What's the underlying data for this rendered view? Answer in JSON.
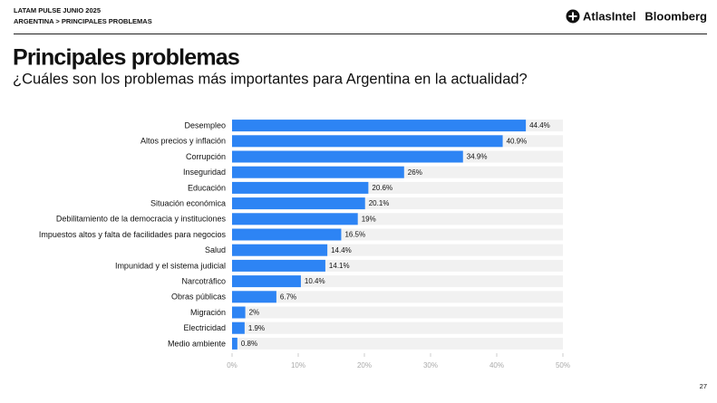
{
  "header": {
    "kicker": "LATAM PULSE JUNIO 2025",
    "breadcrumb": "ARGENTINA > PRINCIPALES PROBLEMAS",
    "brand": "AtlasIntel",
    "partner": "Bloomberg",
    "page_number": "27"
  },
  "chart_data": {
    "type": "hbar",
    "title": "Principales problemas",
    "subtitle": "¿Cuáles son los problemas más importantes para Argentina en la actualidad?",
    "categories": [
      "Desempleo",
      "Altos precios y inflación",
      "Corrupción",
      "Inseguridad",
      "Educación",
      "Situación económica",
      "Debilitamiento de la democracia y instituciones",
      "Impuestos altos y falta de facilidades para negocios",
      "Salud",
      "Impunidad y el sistema judicial",
      "Narcotráfico",
      "Obras públicas",
      "Migración",
      "Electricidad",
      "Medio ambiente"
    ],
    "values": [
      44.4,
      40.9,
      34.9,
      26,
      20.6,
      20.1,
      19,
      16.5,
      14.4,
      14.1,
      10.4,
      6.7,
      2,
      1.9,
      0.8
    ],
    "value_labels": [
      "44.4%",
      "40.9%",
      "34.9%",
      "26%",
      "20.6%",
      "20.1%",
      "19%",
      "16.5%",
      "14.4%",
      "14.1%",
      "10.4%",
      "6.7%",
      "2%",
      "1.9%",
      "0.8%"
    ],
    "color": "#2d84f4",
    "xlim": [
      0,
      50
    ],
    "xticks": [
      {
        "value": 0,
        "label": "0%"
      },
      {
        "value": 10,
        "label": "10%"
      },
      {
        "value": 20,
        "label": "20%"
      },
      {
        "value": 30,
        "label": "30%"
      },
      {
        "value": 40,
        "label": "40%"
      },
      {
        "value": 50,
        "label": "50%"
      }
    ]
  }
}
